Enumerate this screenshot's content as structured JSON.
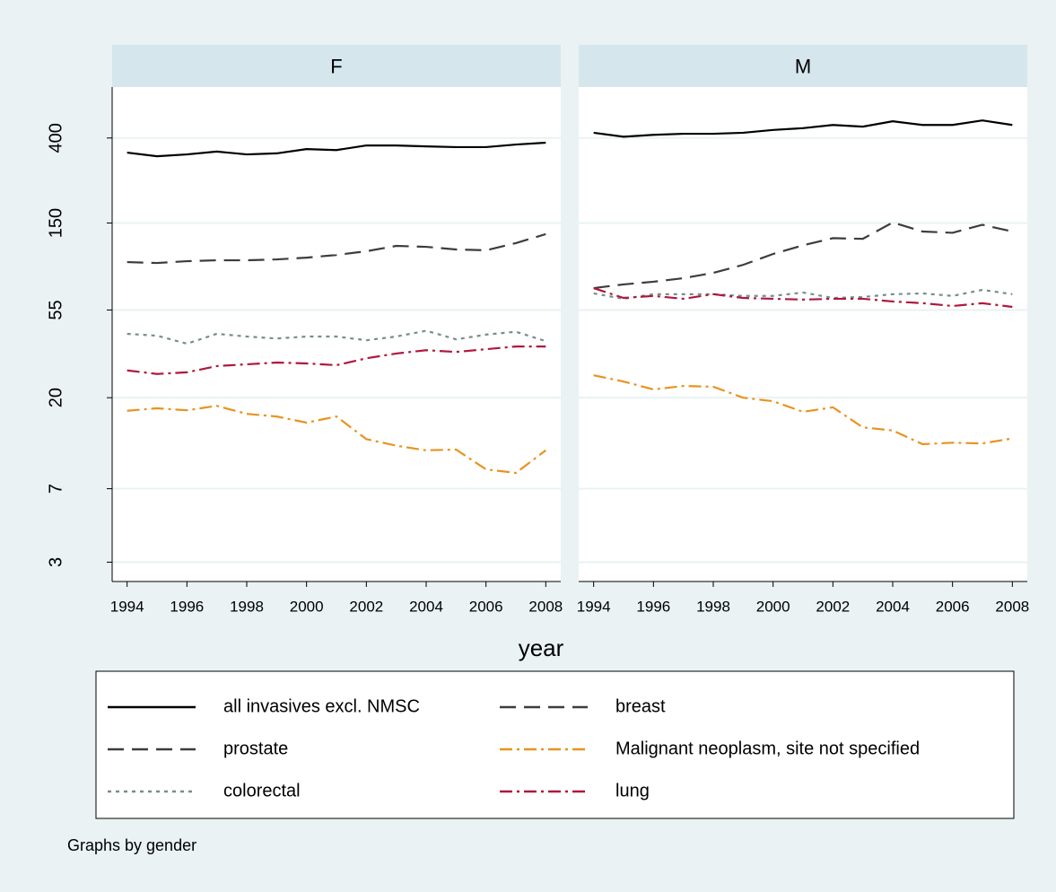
{
  "chart_data": [
    {
      "type": "line",
      "title": "F",
      "log": true,
      "grid": true,
      "x": [
        1994,
        1995,
        1996,
        1997,
        1998,
        1999,
        2000,
        2001,
        2002,
        2003,
        2004,
        2005,
        2006,
        2007,
        2008
      ],
      "xlim": [
        1993.5,
        2008.5
      ],
      "xticks": [
        1994,
        1996,
        1998,
        2000,
        2002,
        2004,
        2006,
        2008
      ],
      "ylim": [
        2.4,
        720
      ],
      "yticks": [
        3,
        7,
        20,
        55,
        150,
        400
      ],
      "series": [
        {
          "name": "all invasives excl. NMSC",
          "color": "#000000",
          "style": "solid",
          "values": [
            338,
            324,
            331,
            342,
            331,
            335,
            352,
            348,
            367,
            367,
            363,
            360,
            360,
            371,
            379
          ]
        },
        {
          "name": "breast",
          "color": "#3c3c3c",
          "style": "longdash",
          "values": [
            95.6,
            94.6,
            96.6,
            97.6,
            97.6,
            98.6,
            100.6,
            103.8,
            108.3,
            115.2,
            114,
            110.6,
            109.5,
            119,
            132
          ]
        },
        {
          "name": "colorectal",
          "color": "#7a8c8c",
          "style": "dot",
          "values": [
            41.8,
            40.9,
            37.3,
            41.8,
            40.5,
            39.6,
            40.5,
            40.5,
            38.8,
            40.5,
            43.3,
            39.2,
            41.4,
            42.8,
            38.4
          ]
        },
        {
          "name": "lung",
          "color": "#b0183c",
          "style": "dashdot",
          "values": [
            27.4,
            26.3,
            26.8,
            28.8,
            29.4,
            30.0,
            29.7,
            29.1,
            31.5,
            33.3,
            34.6,
            33.9,
            35.0,
            36.1,
            36.1
          ]
        },
        {
          "name": "Malignant neoplasm, site not specified",
          "color": "#e8931f",
          "style": "dashdot",
          "values": [
            17.2,
            17.7,
            17.3,
            18.2,
            16.6,
            16.1,
            15.0,
            16.1,
            12.4,
            11.5,
            10.9,
            11.0,
            8.75,
            8.4,
            10.9
          ]
        }
      ]
    },
    {
      "type": "line",
      "title": "M",
      "log": true,
      "grid": true,
      "x": [
        1994,
        1995,
        1996,
        1997,
        1998,
        1999,
        2000,
        2001,
        2002,
        2003,
        2004,
        2005,
        2006,
        2007,
        2008
      ],
      "xlim": [
        1993.5,
        2008.5
      ],
      "xticks": [
        1994,
        1996,
        1998,
        2000,
        2002,
        2004,
        2006,
        2008
      ],
      "ylim": [
        2.4,
        720
      ],
      "yticks": [
        3,
        7,
        20,
        55,
        150,
        400
      ],
      "series": [
        {
          "name": "all invasives excl. NMSC",
          "color": "#000000",
          "style": "solid",
          "values": [
            425,
            406,
            415,
            420,
            420,
            425,
            439,
            448,
            465,
            456,
            485,
            465,
            465,
            490,
            465
          ]
        },
        {
          "name": "prostate",
          "color": "#3c3c3c",
          "style": "longdash",
          "values": [
            70.8,
            73.9,
            76.2,
            79.4,
            84.4,
            92.6,
            105,
            116,
            126,
            125,
            151,
            136,
            134,
            147,
            136
          ]
        },
        {
          "name": "colorectal",
          "color": "#7a8c8c",
          "style": "dot",
          "values": [
            66.6,
            62.6,
            66.0,
            66.0,
            66.0,
            64.7,
            64.7,
            67.3,
            63.2,
            63.9,
            66.0,
            66.6,
            64.7,
            69.4,
            66.0
          ]
        },
        {
          "name": "lung",
          "color": "#b0183c",
          "style": "dashdot",
          "values": [
            70.8,
            63.2,
            64.7,
            62.6,
            66.0,
            63.2,
            62.6,
            62.0,
            62.6,
            62.6,
            60.7,
            59.5,
            57.6,
            59.5,
            57.0
          ]
        },
        {
          "name": "Malignant neoplasm, site not specified",
          "color": "#e8931f",
          "style": "dashdot",
          "values": [
            25.9,
            24.1,
            22.0,
            22.9,
            22.7,
            20.0,
            19.2,
            17.0,
            17.9,
            14.2,
            13.7,
            11.7,
            11.9,
            11.8,
            12.5
          ]
        }
      ]
    }
  ],
  "xlabel": "year",
  "note": "Graphs by gender"
}
